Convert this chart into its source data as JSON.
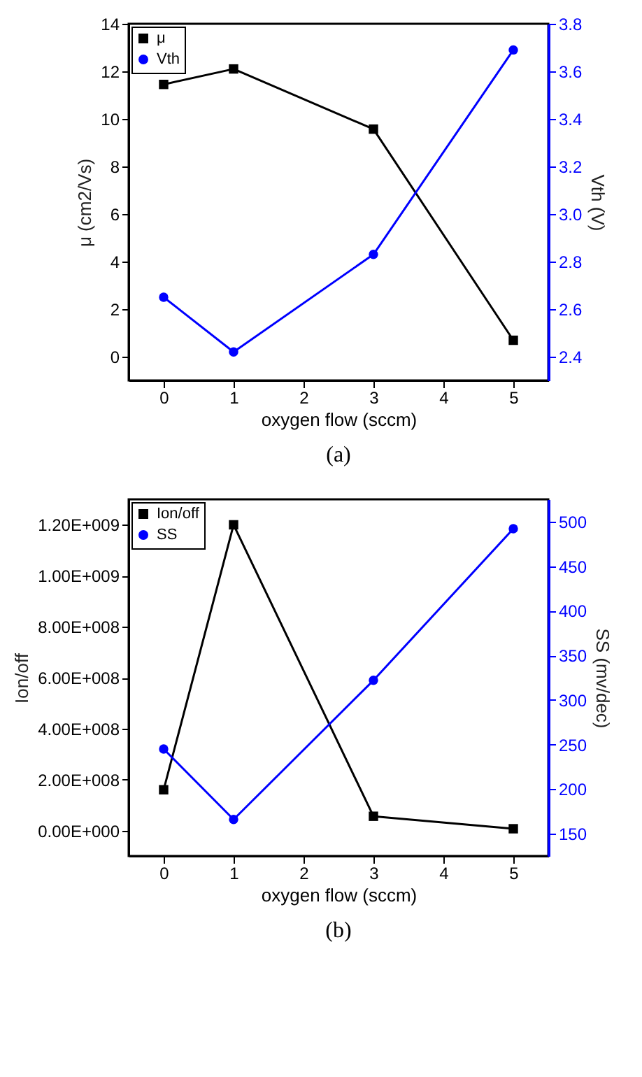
{
  "chart_data": [
    {
      "type": "line",
      "xlabel": "oxygen flow (sccm)",
      "ylabel": "μ (cm2/Vs)",
      "y2label": "Vth (V)",
      "annotations": [
        "(a)"
      ],
      "x": [
        0,
        1,
        3,
        5
      ],
      "xlim": [
        -0.5,
        5.5
      ],
      "xticks": [
        0,
        1,
        2,
        3,
        4,
        5
      ],
      "ylim": [
        -1,
        14
      ],
      "yticks": [
        0,
        2,
        4,
        6,
        8,
        10,
        12,
        14
      ],
      "y2lim": [
        2.3,
        3.8
      ],
      "y2ticks": [
        2.4,
        2.6,
        2.8,
        {
          "value": 3,
          "label": "3.0"
        },
        3.2,
        3.4,
        3.6,
        3.8
      ],
      "legend": "top left",
      "series": [
        {
          "name": "μ",
          "color": "#000000",
          "marker": "square",
          "values": [
            11.45,
            12.1,
            9.57,
            0.69
          ]
        },
        {
          "name": "Vth",
          "color": "#0000ff",
          "marker": "circle",
          "axis": "y2",
          "values": [
            2.65,
            2.42,
            2.83,
            3.69
          ]
        }
      ]
    },
    {
      "type": "line",
      "xlabel": "oxygen flow (sccm)",
      "ylabel": "Ion/off",
      "y2label": "SS (mv/dec)",
      "annotations": [
        "(b)"
      ],
      "x": [
        0,
        1,
        3,
        5
      ],
      "xlim": [
        -0.5,
        5.5
      ],
      "xticks": [
        0,
        1,
        2,
        3,
        4,
        5
      ],
      "ylim": [
        -100000000,
        1300000000
      ],
      "yticks": [
        {
          "value": 0,
          "label": "0.00E+000"
        },
        {
          "value": 200000000,
          "label": "2.00E+008"
        },
        {
          "value": 400000000,
          "label": "4.00E+008"
        },
        {
          "value": 600000000,
          "label": "6.00E+008"
        },
        {
          "value": 800000000,
          "label": "8.00E+008"
        },
        {
          "value": 1000000000,
          "label": "1.00E+009"
        },
        {
          "value": 1200000000,
          "label": "1.20E+009"
        }
      ],
      "y2lim": [
        125,
        525
      ],
      "y2ticks": [
        150,
        200,
        250,
        300,
        350,
        400,
        450,
        500
      ],
      "legend": "top left",
      "series": [
        {
          "name": "Ion/off",
          "color": "#000000",
          "marker": "square",
          "values": [
            160000000,
            1200000000,
            56000000,
            7000000
          ]
        },
        {
          "name": "SS",
          "color": "#0000ff",
          "marker": "circle",
          "axis": "y2",
          "values": [
            245,
            166,
            322,
            492
          ]
        }
      ]
    }
  ]
}
